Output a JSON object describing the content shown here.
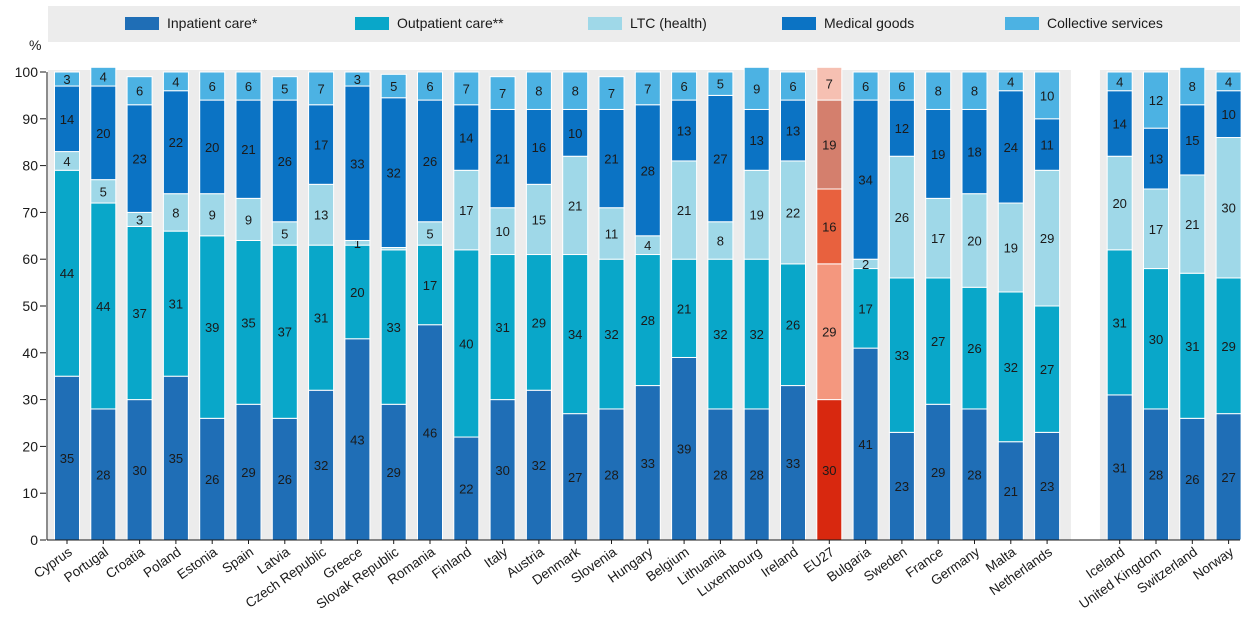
{
  "chart_data": {
    "type": "bar",
    "stacked": true,
    "unit_label": "%",
    "ylim": [
      0,
      100
    ],
    "yticks": [
      "0",
      "10",
      "20",
      "30",
      "40",
      "50",
      "60",
      "70",
      "80",
      "90",
      "100"
    ],
    "grid": false,
    "legend_position": "top",
    "categories": [
      "Cyprus",
      "Portugal",
      "Croatia",
      "Poland",
      "Estonia",
      "Spain",
      "Latvia",
      "Czech Republic",
      "Greece",
      "Slovak Republic",
      "Romania",
      "Finland",
      "Italy",
      "Austria",
      "Denmark",
      "Slovenia",
      "Hungary",
      "Belgium",
      "Lithuania",
      "Luxembourg",
      "Ireland",
      "EU27",
      "Bulgaria",
      "Sweden",
      "France",
      "Germany",
      "Malta",
      "Netherlands",
      "",
      "Iceland",
      "United Kingdom",
      "Switzerland",
      "Norway"
    ],
    "highlight_category": "EU27",
    "series": [
      {
        "name": "Inpatient care*",
        "color": "#1f6eb6",
        "highlight_color": "#d8280f",
        "values": [
          35,
          28,
          30,
          35,
          26,
          29,
          26,
          32,
          43,
          29,
          46,
          22,
          30,
          32,
          27,
          28,
          33,
          39,
          28,
          28,
          33,
          30,
          41,
          23,
          29,
          28,
          21,
          23,
          null,
          31,
          28,
          26,
          27
        ]
      },
      {
        "name": "Outpatient care**",
        "color": "#09a7c9",
        "highlight_color": "#f4977e",
        "values": [
          44,
          44,
          37,
          31,
          39,
          35,
          37,
          31,
          20,
          33,
          17,
          40,
          31,
          29,
          34,
          32,
          28,
          21,
          32,
          32,
          26,
          29,
          17,
          33,
          27,
          26,
          32,
          27,
          null,
          31,
          30,
          31,
          29
        ]
      },
      {
        "name": "LTC (health)",
        "color": "#9fd8e8",
        "highlight_color": "#e8613e",
        "values": [
          4,
          5,
          3,
          8,
          9,
          9,
          5,
          13,
          1,
          0.5,
          5,
          17,
          10,
          15,
          21,
          11,
          4,
          21,
          8,
          19,
          22,
          16,
          2,
          26,
          17,
          20,
          19,
          29,
          null,
          20,
          17,
          21,
          30
        ]
      },
      {
        "name": "Medical goods",
        "color": "#0b73c4",
        "highlight_color": "#d47f6d",
        "values": [
          14,
          20,
          23,
          22,
          20,
          21,
          26,
          17,
          33,
          32,
          26,
          14,
          21,
          16,
          10,
          21,
          28,
          13,
          27,
          13,
          13,
          19,
          34,
          12,
          19,
          18,
          24,
          11,
          null,
          14,
          13,
          15,
          10
        ]
      },
      {
        "name": "Collective services",
        "color": "#4cb2e3",
        "highlight_color": "#f6c0b2",
        "values": [
          3,
          4,
          6,
          4,
          6,
          6,
          5,
          7,
          3,
          5,
          6,
          7,
          7,
          8,
          8,
          7,
          7,
          6,
          5,
          9,
          6,
          7,
          6,
          6,
          8,
          8,
          4,
          10,
          null,
          4,
          12,
          8,
          4
        ]
      }
    ],
    "labels": [
      [
        "35",
        "44",
        "4",
        "14",
        "3"
      ],
      [
        "28",
        "44",
        "5",
        "20",
        "4"
      ],
      [
        "30",
        "37",
        "3",
        "23",
        "6"
      ],
      [
        "35",
        "31",
        "8",
        "22",
        "4"
      ],
      [
        "26",
        "39",
        "9",
        "20",
        "6"
      ],
      [
        "29",
        "35",
        "9",
        "21",
        "6"
      ],
      [
        "26",
        "37",
        "5",
        "26",
        "5"
      ],
      [
        "32",
        "31",
        "13",
        "17",
        "7"
      ],
      [
        "43",
        "20",
        "1",
        "33",
        "3"
      ],
      [
        "29",
        "33",
        "",
        "32",
        "5"
      ],
      [
        "46",
        "17",
        "5",
        "26",
        "6"
      ],
      [
        "22",
        "40",
        "17",
        "14",
        "7"
      ],
      [
        "30",
        "31",
        "10",
        "21",
        "7"
      ],
      [
        "32",
        "29",
        "15",
        "16",
        "8"
      ],
      [
        "27",
        "34",
        "21",
        "10",
        "8"
      ],
      [
        "28",
        "32",
        "11",
        "21",
        "7"
      ],
      [
        "33",
        "28",
        "4",
        "28",
        "7"
      ],
      [
        "39",
        "21",
        "21",
        "13",
        "6"
      ],
      [
        "28",
        "32",
        "8",
        "27",
        "5"
      ],
      [
        "28",
        "32",
        "19",
        "13",
        "9"
      ],
      [
        "33",
        "26",
        "22",
        "13",
        "6"
      ],
      [
        "30",
        "29",
        "16",
        "19",
        "7"
      ],
      [
        "41",
        "17",
        "2",
        "34",
        "6"
      ],
      [
        "23",
        "33",
        "26",
        "12",
        "6"
      ],
      [
        "29",
        "27",
        "17",
        "19",
        "8"
      ],
      [
        "28",
        "26",
        "20",
        "18",
        "8"
      ],
      [
        "21",
        "32",
        "19",
        "24",
        "4"
      ],
      [
        "23",
        "27",
        "29",
        "11",
        "10"
      ],
      [
        "",
        "",
        "",
        "",
        ""
      ],
      [
        "31",
        "31",
        "20",
        "14",
        "4"
      ],
      [
        "28",
        "30",
        "17",
        "13",
        "12"
      ],
      [
        "26",
        "31",
        "21",
        "15",
        "8"
      ],
      [
        "27",
        "29",
        "30",
        "10",
        "4"
      ]
    ],
    "background_color": "#ececec"
  }
}
